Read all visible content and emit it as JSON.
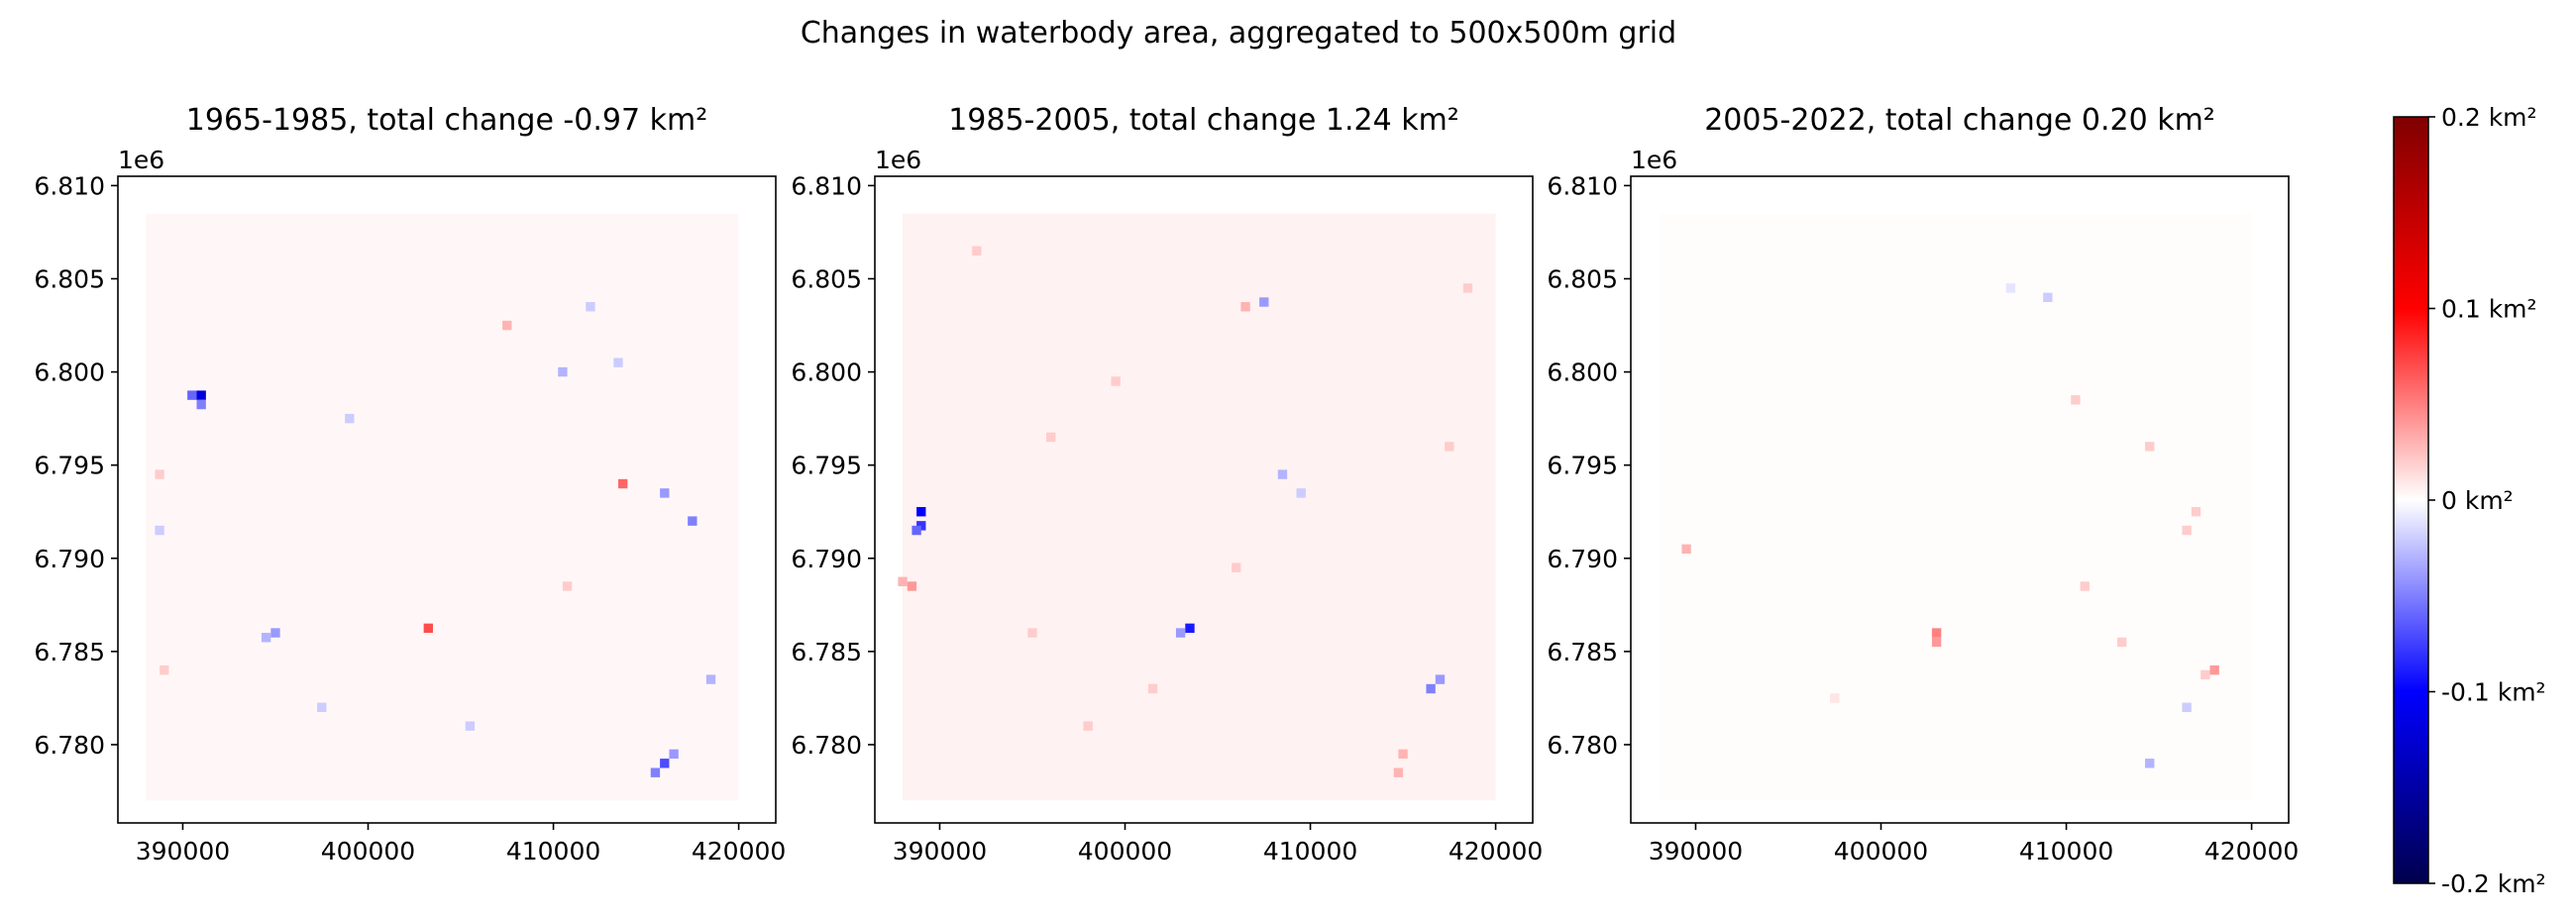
{
  "figure": {
    "suptitle": "Changes in waterbody area, aggregated to 500x500m grid"
  },
  "chart_data": [
    {
      "type": "heatmap",
      "title": "1965-1985, total change -0.97 km²",
      "xlim": [
        386500,
        422000
      ],
      "ylim": [
        6775800,
        6810500
      ],
      "xticks": [
        390000,
        400000,
        410000,
        420000
      ],
      "xtick_labels": [
        "390000",
        "400000",
        "410000",
        "420000"
      ],
      "yticks": [
        6780000,
        6785000,
        6790000,
        6795000,
        6800000,
        6805000,
        6810000
      ],
      "ytick_labels": [
        "6.780",
        "6.785",
        "6.790",
        "6.795",
        "6.800",
        "6.805",
        "6.810"
      ],
      "y_offset_label": "1e6",
      "cell_size_m": 500,
      "extent": [
        388000,
        420000,
        6777000,
        6808500
      ],
      "background_value": 0.003,
      "notable_cells": [
        {
          "x": 391000,
          "y": 6798750,
          "value": -0.12
        },
        {
          "x": 390500,
          "y": 6798750,
          "value": -0.06
        },
        {
          "x": 391000,
          "y": 6798250,
          "value": -0.05
        },
        {
          "x": 403250,
          "y": 6786250,
          "value": 0.07
        },
        {
          "x": 413750,
          "y": 6794000,
          "value": 0.06
        },
        {
          "x": 410750,
          "y": 6788500,
          "value": 0.02
        },
        {
          "x": 407500,
          "y": 6802500,
          "value": 0.03
        },
        {
          "x": 416000,
          "y": 6779000,
          "value": -0.07
        },
        {
          "x": 415500,
          "y": 6778500,
          "value": -0.05
        },
        {
          "x": 416500,
          "y": 6779500,
          "value": -0.04
        },
        {
          "x": 417500,
          "y": 6792000,
          "value": -0.05
        },
        {
          "x": 416000,
          "y": 6793500,
          "value": -0.04
        },
        {
          "x": 395000,
          "y": 6786000,
          "value": -0.04
        },
        {
          "x": 394500,
          "y": 6785750,
          "value": -0.03
        },
        {
          "x": 410500,
          "y": 6800000,
          "value": -0.03
        },
        {
          "x": 418500,
          "y": 6783500,
          "value": -0.03
        },
        {
          "x": 389000,
          "y": 6784000,
          "value": 0.02
        },
        {
          "x": 388750,
          "y": 6794500,
          "value": 0.02
        },
        {
          "x": 412000,
          "y": 6803500,
          "value": -0.02
        },
        {
          "x": 413500,
          "y": 6800500,
          "value": -0.02
        },
        {
          "x": 397500,
          "y": 6782000,
          "value": -0.02
        },
        {
          "x": 399000,
          "y": 6797500,
          "value": -0.02
        },
        {
          "x": 388750,
          "y": 6791500,
          "value": -0.02
        },
        {
          "x": 405500,
          "y": 6781000,
          "value": -0.02
        }
      ]
    },
    {
      "type": "heatmap",
      "title": "1985-2005, total change 1.24 km²",
      "xlim": [
        386500,
        422000
      ],
      "ylim": [
        6775800,
        6810500
      ],
      "xticks": [
        390000,
        400000,
        410000,
        420000
      ],
      "xtick_labels": [
        "390000",
        "400000",
        "410000",
        "420000"
      ],
      "yticks": [
        6780000,
        6785000,
        6790000,
        6795000,
        6800000,
        6805000,
        6810000
      ],
      "ytick_labels": [
        "6.780",
        "6.785",
        "6.790",
        "6.795",
        "6.800",
        "6.805",
        "6.810"
      ],
      "y_offset_label": "1e6",
      "cell_size_m": 500,
      "extent": [
        388000,
        420000,
        6777000,
        6808500
      ],
      "background_value": 0.005,
      "notable_cells": [
        {
          "x": 389000,
          "y": 6792500,
          "value": -0.1
        },
        {
          "x": 389000,
          "y": 6791750,
          "value": -0.08
        },
        {
          "x": 388750,
          "y": 6791500,
          "value": -0.06
        },
        {
          "x": 403500,
          "y": 6786250,
          "value": -0.09
        },
        {
          "x": 403000,
          "y": 6786000,
          "value": -0.04
        },
        {
          "x": 388500,
          "y": 6788500,
          "value": 0.04
        },
        {
          "x": 388000,
          "y": 6788750,
          "value": 0.03
        },
        {
          "x": 416500,
          "y": 6783000,
          "value": -0.05
        },
        {
          "x": 417000,
          "y": 6783500,
          "value": -0.04
        },
        {
          "x": 407500,
          "y": 6803750,
          "value": -0.04
        },
        {
          "x": 406500,
          "y": 6803500,
          "value": 0.03
        },
        {
          "x": 408500,
          "y": 6794500,
          "value": -0.03
        },
        {
          "x": 409500,
          "y": 6793500,
          "value": -0.02
        },
        {
          "x": 414750,
          "y": 6778500,
          "value": 0.03
        },
        {
          "x": 415000,
          "y": 6779500,
          "value": 0.03
        },
        {
          "x": 395000,
          "y": 6786000,
          "value": 0.02
        },
        {
          "x": 398000,
          "y": 6781000,
          "value": 0.02
        },
        {
          "x": 406000,
          "y": 6789500,
          "value": 0.02
        },
        {
          "x": 417500,
          "y": 6796000,
          "value": 0.02
        },
        {
          "x": 392000,
          "y": 6806500,
          "value": 0.02
        },
        {
          "x": 396000,
          "y": 6796500,
          "value": 0.02
        },
        {
          "x": 399500,
          "y": 6799500,
          "value": 0.02
        },
        {
          "x": 418500,
          "y": 6804500,
          "value": 0.02
        },
        {
          "x": 401500,
          "y": 6783000,
          "value": 0.02
        }
      ]
    },
    {
      "type": "heatmap",
      "title": "2005-2022, total change 0.20 km²",
      "xlim": [
        386500,
        422000
      ],
      "ylim": [
        6775800,
        6810500
      ],
      "xticks": [
        390000,
        400000,
        410000,
        420000
      ],
      "xtick_labels": [
        "390000",
        "400000",
        "410000",
        "420000"
      ],
      "yticks": [
        6780000,
        6785000,
        6790000,
        6795000,
        6800000,
        6805000,
        6810000
      ],
      "ytick_labels": [
        "6.780",
        "6.785",
        "6.790",
        "6.795",
        "6.800",
        "6.805",
        "6.810"
      ],
      "y_offset_label": "1e6",
      "cell_size_m": 500,
      "extent": [
        388000,
        420000,
        6777000,
        6808500
      ],
      "background_value": 0.001,
      "notable_cells": [
        {
          "x": 403000,
          "y": 6786000,
          "value": 0.05
        },
        {
          "x": 403000,
          "y": 6785500,
          "value": 0.04
        },
        {
          "x": 418000,
          "y": 6784000,
          "value": 0.04
        },
        {
          "x": 417500,
          "y": 6783750,
          "value": 0.02
        },
        {
          "x": 414500,
          "y": 6779000,
          "value": -0.03
        },
        {
          "x": 416500,
          "y": 6782000,
          "value": -0.02
        },
        {
          "x": 389500,
          "y": 6790500,
          "value": 0.03
        },
        {
          "x": 410500,
          "y": 6798500,
          "value": 0.02
        },
        {
          "x": 411000,
          "y": 6788500,
          "value": 0.02
        },
        {
          "x": 413000,
          "y": 6785500,
          "value": 0.02
        },
        {
          "x": 416500,
          "y": 6791500,
          "value": 0.02
        },
        {
          "x": 417000,
          "y": 6792500,
          "value": 0.02
        },
        {
          "x": 414500,
          "y": 6796000,
          "value": 0.02
        },
        {
          "x": 409000,
          "y": 6804000,
          "value": -0.02
        },
        {
          "x": 407000,
          "y": 6804500,
          "value": -0.01
        },
        {
          "x": 397500,
          "y": 6782500,
          "value": 0.01
        }
      ]
    },
    {
      "type": "colorbar",
      "cmap": "seismic",
      "range": [
        -0.2,
        0.2
      ],
      "ticks": [
        0.2,
        0.1,
        0,
        -0.1,
        -0.2
      ],
      "tick_labels": [
        "0.2 km²",
        "0.1 km²",
        "0 km²",
        "-0.1 km²",
        "-0.2 km²"
      ],
      "colors": {
        "low": "#00004d",
        "mid_low": "#0000ff",
        "mid": "#ffffff",
        "mid_high": "#ff0000",
        "high": "#800000"
      }
    }
  ]
}
